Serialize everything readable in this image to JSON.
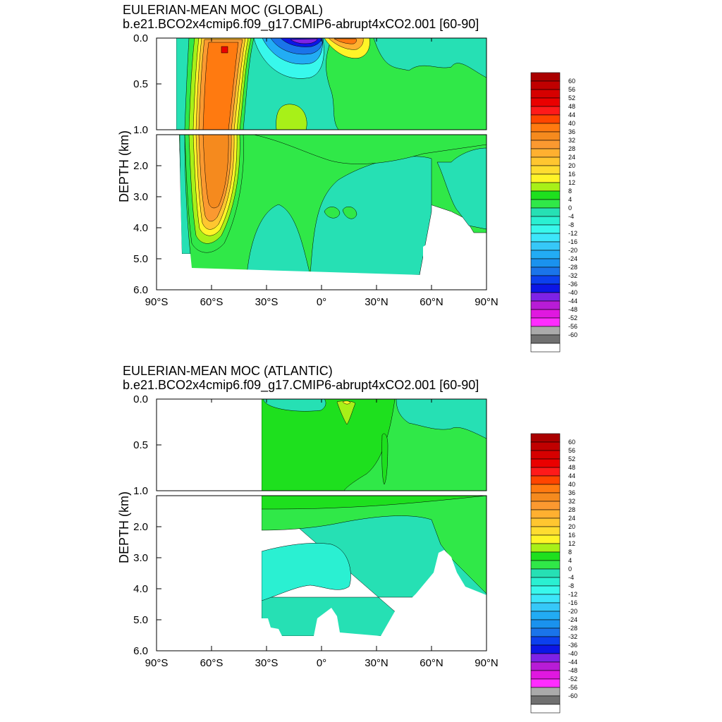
{
  "panels": [
    {
      "title": "EULERIAN-MEAN MOC (GLOBAL)",
      "subtitle": "b.e21.BCO2x4cmip6.f09_g17.CMIP6-abrupt4xCO2.001 [60-90]"
    },
    {
      "title": "EULERIAN-MEAN MOC (ATLANTIC)",
      "subtitle": "b.e21.BCO2x4cmip6.f09_g17.CMIP6-abrupt4xCO2.001 [60-90]"
    }
  ],
  "chart_data": [
    {
      "type": "heatmap",
      "title": "EULERIAN-MEAN MOC (GLOBAL)",
      "subtitle": "b.e21.BCO2x4cmip6.f09_g17.CMIP6-abrupt4xCO2.001 [60-90]",
      "ylabel": "DEPTH (km)",
      "xlim": [
        -90,
        90
      ],
      "ylim_upper": [
        0.0,
        1.0
      ],
      "ylim_lower": [
        1.0,
        6.0
      ],
      "x_ticks": [
        "90°S",
        "60°S",
        "30°S",
        "0°",
        "30°N",
        "60°N",
        "90°N"
      ],
      "y_ticks_upper": [
        "0.0",
        "0.5",
        "1.0"
      ],
      "y_ticks_lower": [
        "2.0",
        "3.0",
        "4.0",
        "5.0",
        "6.0"
      ],
      "data_extent_lat": [
        -78,
        90
      ],
      "features": [
        {
          "name": "southern deep cell max",
          "lat": -52,
          "depth_km": 0.15,
          "value": 44
        },
        {
          "name": "southern deep cell",
          "lat": -52,
          "depth_km": 2.5,
          "value": 32
        },
        {
          "name": "southern hemisphere subtropical cell min",
          "lat": -13,
          "depth_km": 0.05,
          "value": -40
        },
        {
          "name": "northern hemisphere subtropical cell max",
          "lat": 12,
          "depth_km": 0.05,
          "value": 20
        },
        {
          "name": "deep abyssal cell",
          "lat": 10,
          "depth_km": 3.5,
          "value": -4
        }
      ],
      "colorbar": {
        "labels": [
          "60",
          "56",
          "52",
          "48",
          "44",
          "40",
          "36",
          "32",
          "28",
          "24",
          "20",
          "16",
          "12",
          "8",
          "4",
          "0",
          "-4",
          "-8",
          "-12",
          "-16",
          "-20",
          "-24",
          "-28",
          "-32",
          "-36",
          "-40",
          "-44",
          "-48",
          "-52",
          "-56",
          "-60"
        ],
        "colors": [
          "#aa0000",
          "#c00000",
          "#d60000",
          "#ea0000",
          "#ff1a1a",
          "#ff4500",
          "#ff7a10",
          "#f58a1e",
          "#fb9930",
          "#ffb030",
          "#ffc630",
          "#ffdc30",
          "#fff428",
          "#a8f018",
          "#1ee01e",
          "#30e848",
          "#26e0b4",
          "#2af0d2",
          "#38f8ec",
          "#3ce6fa",
          "#36c8f8",
          "#22acf4",
          "#1a92ee",
          "#1a74ea",
          "#0c40ee",
          "#0c16e6",
          "#7e22e6",
          "#b81cd6",
          "#e018e0",
          "#ff2cff",
          "#aaaaaa",
          "#707070",
          "#ffffff"
        ]
      }
    },
    {
      "type": "heatmap",
      "title": "EULERIAN-MEAN MOC (ATLANTIC)",
      "subtitle": "b.e21.BCO2x4cmip6.f09_g17.CMIP6-abrupt4xCO2.001 [60-90]",
      "ylabel": "DEPTH (km)",
      "xlim": [
        -90,
        90
      ],
      "ylim_upper": [
        0.0,
        1.0
      ],
      "ylim_lower": [
        1.0,
        6.0
      ],
      "x_ticks": [
        "90°S",
        "60°S",
        "30°S",
        "0°",
        "30°N",
        "60°N",
        "90°N"
      ],
      "y_ticks_upper": [
        "0.0",
        "0.5",
        "1.0"
      ],
      "y_ticks_lower": [
        "2.0",
        "3.0",
        "4.0",
        "5.0",
        "6.0"
      ],
      "data_extent_lat": [
        -33,
        90
      ],
      "features": [
        {
          "name": "upper overturning cell",
          "lat": 12,
          "depth_km": 0.1,
          "value": 12
        },
        {
          "name": "southern shallow negative cell",
          "lat": -18,
          "depth_km": 0.1,
          "value": -4
        },
        {
          "name": "abyssal negative cell",
          "lat": -15,
          "depth_km": 3.7,
          "value": -8
        }
      ],
      "colorbar": {
        "labels": [
          "60",
          "56",
          "52",
          "48",
          "44",
          "40",
          "36",
          "32",
          "28",
          "24",
          "20",
          "16",
          "12",
          "8",
          "4",
          "0",
          "-4",
          "-8",
          "-12",
          "-16",
          "-20",
          "-24",
          "-28",
          "-32",
          "-36",
          "-40",
          "-44",
          "-48",
          "-52",
          "-56",
          "-60"
        ],
        "colors": [
          "#aa0000",
          "#c00000",
          "#d60000",
          "#ea0000",
          "#ff1a1a",
          "#ff4500",
          "#ff7a10",
          "#f58a1e",
          "#fb9930",
          "#ffb030",
          "#ffc630",
          "#ffdc30",
          "#fff428",
          "#a8f018",
          "#1ee01e",
          "#30e848",
          "#26e0b4",
          "#2af0d2",
          "#38f8ec",
          "#3ce6fa",
          "#36c8f8",
          "#22acf4",
          "#1a92ee",
          "#1a74ea",
          "#0c40ee",
          "#0c16e6",
          "#7e22e6",
          "#b81cd6",
          "#e018e0",
          "#ff2cff",
          "#aaaaaa",
          "#707070",
          "#ffffff"
        ]
      }
    }
  ]
}
